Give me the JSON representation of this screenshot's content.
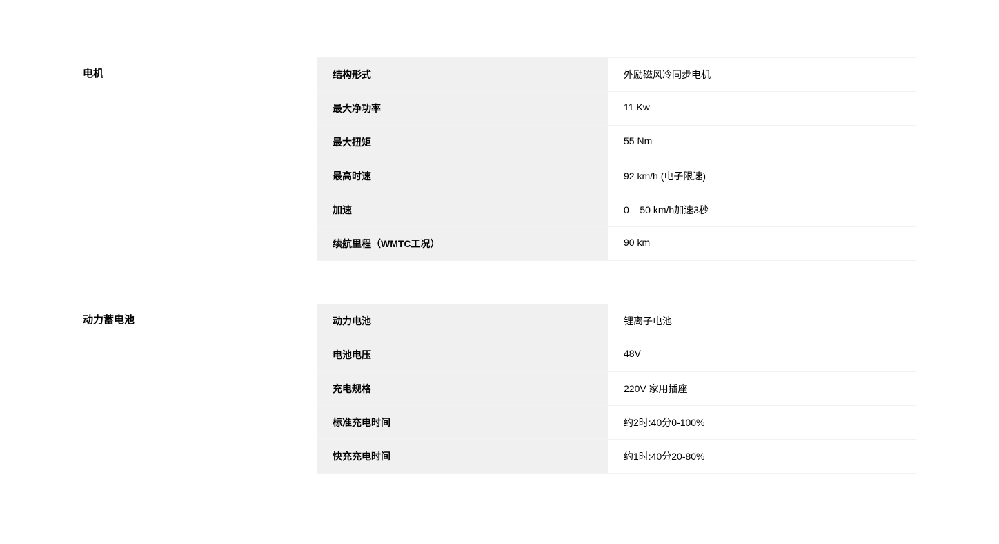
{
  "sections": [
    {
      "title": "电机",
      "rows": [
        {
          "label": "结构形式",
          "value": "外励磁风冷同步电机"
        },
        {
          "label": "最大净功率",
          "value": "11 Kw"
        },
        {
          "label": "最大扭矩",
          "value": "55 Nm"
        },
        {
          "label": "最高时速",
          "value": "92 km/h (电子限速)"
        },
        {
          "label": "加速",
          "value": "0 – 50 km/h加速3秒"
        },
        {
          "label": "续航里程（WMTC工况）",
          "value": "90 km"
        }
      ]
    },
    {
      "title": "动力蓄电池",
      "rows": [
        {
          "label": "动力电池",
          "value": "锂离子电池"
        },
        {
          "label": "电池电压",
          "value": "48V"
        },
        {
          "label": "充电规格",
          "value": "220V 家用插座"
        },
        {
          "label": "标准充电时间",
          "value": "约2时:40分0-100%"
        },
        {
          "label": "快充充电时间",
          "value": "约1时:40分20-80%"
        }
      ]
    }
  ],
  "styling": {
    "background_color": "#ffffff",
    "text_color": "#000000",
    "label_background": "#f0f0f0",
    "value_background": "#ffffff",
    "border_color": "#f2f2f2",
    "title_fontsize": 15,
    "title_fontweight": 700,
    "label_fontsize": 14,
    "label_fontweight": 700,
    "value_fontsize": 14,
    "value_fontweight": 400,
    "section_title_width": 340,
    "label_column_width": 422,
    "row_padding_vertical": 14,
    "row_padding_horizontal": 22,
    "section_gap": 62
  }
}
